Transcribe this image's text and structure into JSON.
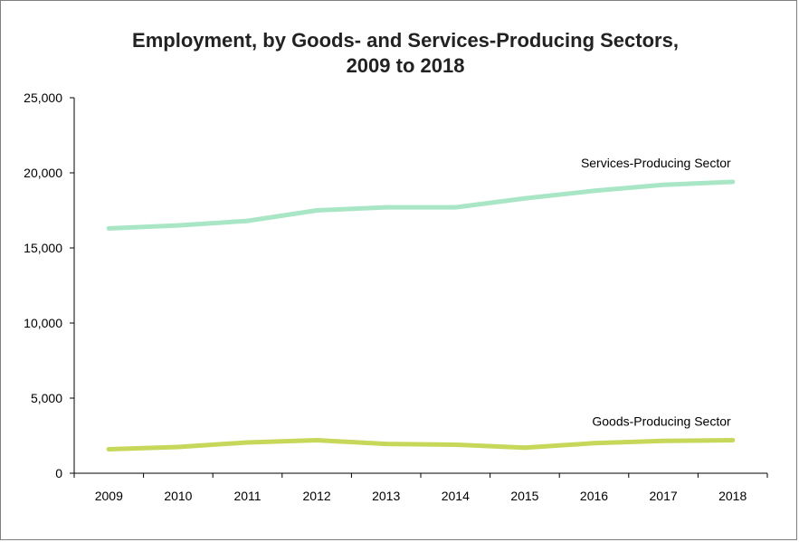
{
  "chart_data": {
    "type": "line",
    "title": "Employment, by Goods- and Services-Producing Sectors,",
    "subtitle": "2009 to 2018",
    "xlabel": "",
    "ylabel": "",
    "x": [
      "2009",
      "2010",
      "2011",
      "2012",
      "2013",
      "2014",
      "2015",
      "2016",
      "2017",
      "2018"
    ],
    "ylim": [
      0,
      25000
    ],
    "yticks": [
      0,
      5000,
      10000,
      15000,
      20000,
      25000
    ],
    "ytick_labels": [
      "0",
      "5,000",
      "10,000",
      "15,000",
      "20,000",
      "25,000"
    ],
    "grid": false,
    "legend": "none",
    "series": [
      {
        "name": "Services-Producing Sector",
        "color": "#a8e6c6",
        "values": [
          16300,
          16500,
          16800,
          17500,
          17700,
          17700,
          18300,
          18800,
          19200,
          19400
        ]
      },
      {
        "name": "Goods-Producing Sector",
        "color": "#c6d75a",
        "values": [
          1600,
          1750,
          2050,
          2200,
          1950,
          1900,
          1700,
          2000,
          2150,
          2200
        ]
      }
    ]
  }
}
